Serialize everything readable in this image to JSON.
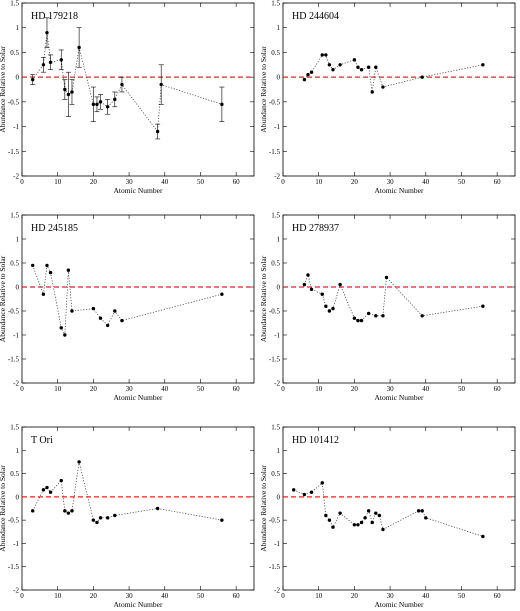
{
  "chart_data": [
    {
      "type": "scatter",
      "title": "HD 179218",
      "xlabel": "Atomic Number",
      "ylabel": "Abundance Relative to Solar",
      "xlim": [
        0,
        65
      ],
      "ylim": [
        -2,
        1.5
      ],
      "xticks": [
        0,
        10,
        20,
        30,
        40,
        50,
        60
      ],
      "yticks": [
        -2,
        -1.5,
        -1,
        -0.5,
        0,
        0.5,
        1,
        1.5
      ],
      "reference_line": {
        "y": 0,
        "color": "#e8201f",
        "style": "dashed"
      },
      "series": [
        {
          "x": [
            3,
            6,
            7,
            8,
            11,
            12,
            13,
            14,
            16,
            20,
            21,
            22,
            24,
            26,
            28,
            38,
            39,
            56
          ],
          "y": [
            -0.05,
            0.25,
            0.9,
            0.3,
            0.35,
            -0.25,
            -0.35,
            -0.3,
            0.6,
            -0.55,
            -0.55,
            -0.5,
            -0.6,
            -0.45,
            -0.15,
            -1.1,
            -0.15,
            -0.55
          ],
          "err": [
            0.1,
            0.15,
            0.3,
            0.15,
            0.2,
            0.2,
            0.45,
            0.25,
            0.4,
            0.35,
            0.15,
            0.15,
            0.15,
            0.15,
            0.15,
            0.15,
            0.4,
            0.35
          ]
        }
      ]
    },
    {
      "type": "scatter",
      "title": "HD 244604",
      "xlabel": "Atomic Number",
      "ylabel": "Abundance Relative to Solar",
      "xlim": [
        0,
        65
      ],
      "ylim": [
        -2,
        1.5
      ],
      "xticks": [
        0,
        10,
        20,
        30,
        40,
        50,
        60
      ],
      "yticks": [
        -2,
        -1.5,
        -1,
        -0.5,
        0,
        0.5,
        1,
        1.5
      ],
      "reference_line": {
        "y": 0,
        "color": "#e8201f",
        "style": "dashed"
      },
      "series": [
        {
          "x": [
            6,
            7,
            8,
            11,
            12,
            13,
            14,
            16,
            20,
            21,
            22,
            24,
            25,
            26,
            28,
            39,
            56
          ],
          "y": [
            -0.05,
            0.05,
            0.1,
            0.45,
            0.45,
            0.25,
            0.15,
            0.25,
            0.35,
            0.2,
            0.15,
            0.2,
            -0.3,
            0.2,
            -0.2,
            0.0,
            0.25
          ]
        }
      ]
    },
    {
      "type": "scatter",
      "title": "HD 245185",
      "xlabel": "Atomic Number",
      "ylabel": "Abundance Relative to Solar",
      "xlim": [
        0,
        65
      ],
      "ylim": [
        -2,
        1.5
      ],
      "xticks": [
        0,
        10,
        20,
        30,
        40,
        50,
        60
      ],
      "yticks": [
        -2,
        -1.5,
        -1,
        -0.5,
        0,
        0.5,
        1,
        1.5
      ],
      "reference_line": {
        "y": 0,
        "color": "#e8201f",
        "style": "dashed"
      },
      "series": [
        {
          "x": [
            3,
            6,
            7,
            8,
            11,
            12,
            13,
            14,
            20,
            22,
            24,
            26,
            28,
            56
          ],
          "y": [
            0.45,
            -0.15,
            0.45,
            0.3,
            -0.85,
            -1.0,
            0.35,
            -0.5,
            -0.45,
            -0.65,
            -0.8,
            -0.5,
            -0.7,
            -0.15
          ]
        }
      ]
    },
    {
      "type": "scatter",
      "title": "HD 278937",
      "xlabel": "Atomic Number",
      "ylabel": "Abundance Relative to Solar",
      "xlim": [
        0,
        65
      ],
      "ylim": [
        -2,
        1.5
      ],
      "xticks": [
        0,
        10,
        20,
        30,
        40,
        50,
        60
      ],
      "yticks": [
        -2,
        -1.5,
        -1,
        -0.5,
        0,
        0.5,
        1,
        1.5
      ],
      "reference_line": {
        "y": 0,
        "color": "#e8201f",
        "style": "dashed"
      },
      "series": [
        {
          "x": [
            6,
            7,
            8,
            11,
            12,
            13,
            14,
            16,
            20,
            21,
            22,
            24,
            26,
            28,
            29,
            39,
            56
          ],
          "y": [
            0.05,
            0.25,
            -0.05,
            -0.15,
            -0.4,
            -0.5,
            -0.45,
            0.05,
            -0.65,
            -0.7,
            -0.7,
            -0.55,
            -0.6,
            -0.6,
            0.2,
            -0.6,
            -0.4
          ]
        }
      ]
    },
    {
      "type": "scatter",
      "title": "T Ori",
      "xlabel": "Atomic Number",
      "ylabel": "Abundance Relative to Solar",
      "xlim": [
        0,
        65
      ],
      "ylim": [
        -2,
        1.5
      ],
      "xticks": [
        0,
        10,
        20,
        30,
        40,
        50,
        60
      ],
      "yticks": [
        -2,
        -1.5,
        -1,
        -0.5,
        0,
        0.5,
        1,
        1.5
      ],
      "reference_line": {
        "y": 0,
        "color": "#e8201f",
        "style": "dashed"
      },
      "series": [
        {
          "x": [
            3,
            6,
            7,
            8,
            11,
            12,
            13,
            14,
            16,
            20,
            21,
            22,
            24,
            26,
            38,
            56
          ],
          "y": [
            -0.3,
            0.15,
            0.2,
            0.1,
            0.35,
            -0.3,
            -0.35,
            -0.3,
            0.75,
            -0.5,
            -0.55,
            -0.45,
            -0.45,
            -0.4,
            -0.25,
            -0.5
          ]
        }
      ]
    },
    {
      "type": "scatter",
      "title": "HD 101412",
      "xlabel": "Atomic Number",
      "ylabel": "Abundance Relative to Solar",
      "xlim": [
        0,
        65
      ],
      "ylim": [
        -2,
        1.5
      ],
      "xticks": [
        0,
        10,
        20,
        30,
        40,
        50,
        60
      ],
      "yticks": [
        -2,
        -1.5,
        -1,
        -0.5,
        0,
        0.5,
        1,
        1.5
      ],
      "reference_line": {
        "y": 0,
        "color": "#e8201f",
        "style": "dashed"
      },
      "series": [
        {
          "x": [
            3,
            6,
            8,
            11,
            12,
            13,
            14,
            16,
            20,
            21,
            22,
            23,
            24,
            25,
            26,
            27,
            28,
            38,
            39,
            40,
            56
          ],
          "y": [
            0.15,
            0.05,
            0.1,
            0.3,
            -0.4,
            -0.5,
            -0.65,
            -0.35,
            -0.6,
            -0.6,
            -0.55,
            -0.45,
            -0.3,
            -0.55,
            -0.35,
            -0.4,
            -0.7,
            -0.3,
            -0.3,
            -0.45,
            -0.85
          ]
        }
      ]
    }
  ]
}
